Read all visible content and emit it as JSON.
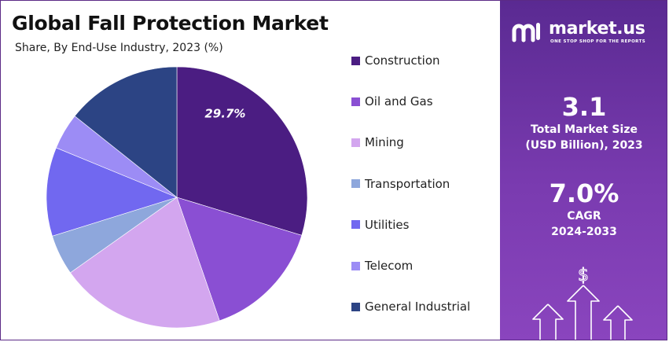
{
  "chart_data": {
    "type": "pie",
    "title": "Global Fall Protection Market",
    "subtitle": "Share, By End-Use Industry, 2023 (%)",
    "slices": [
      {
        "name": "Construction",
        "value": 29.7,
        "color": "#4b1d82",
        "label": "29.7%"
      },
      {
        "name": "Oil and Gas",
        "value": 15.0,
        "color": "#8a4fd3",
        "label": ""
      },
      {
        "name": "Mining",
        "value": 20.5,
        "color": "#d3a6ef",
        "label": ""
      },
      {
        "name": "Transportation",
        "value": 5.0,
        "color": "#8ea7dc",
        "label": ""
      },
      {
        "name": "Utilities",
        "value": 11.0,
        "color": "#7168f0",
        "label": ""
      },
      {
        "name": "Telecom",
        "value": 4.5,
        "color": "#9c8cf5",
        "label": ""
      },
      {
        "name": "General Industrial",
        "value": 14.3,
        "color": "#2c4484",
        "label": ""
      }
    ],
    "legend_placement": "right"
  },
  "brand": {
    "name": "market.us",
    "tagline": "ONE STOP SHOP FOR THE REPORTS"
  },
  "stats": [
    {
      "value": "3.1",
      "label_line1": "Total Market Size",
      "label_line2": "(USD Billion), 2023"
    },
    {
      "value": "7.0%",
      "label_line1": "CAGR",
      "label_line2": "2024-2033"
    }
  ],
  "decoration": {
    "currency_symbol": "$"
  }
}
